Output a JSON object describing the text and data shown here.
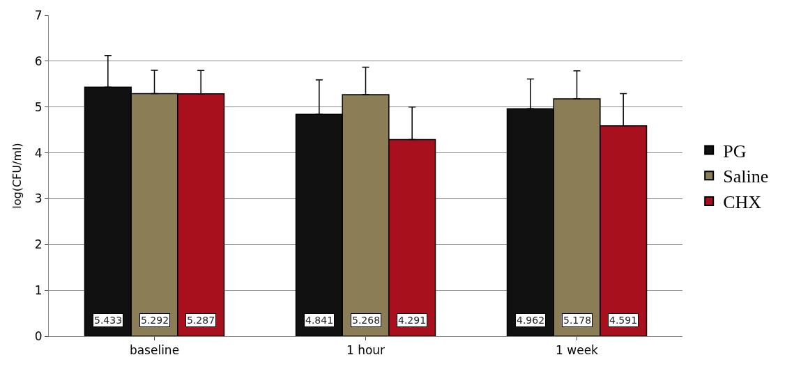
{
  "chart_data": {
    "type": "bar",
    "ylabel": "log(CFU/ml)",
    "categories": [
      "baseline",
      "1 hour",
      "1 week"
    ],
    "ylim": [
      0,
      7
    ],
    "yticks": [
      0,
      1,
      2,
      3,
      4,
      5,
      6,
      7
    ],
    "grid": "y",
    "legend": "right",
    "series": [
      {
        "name": "PG",
        "color": "#111111",
        "values": [
          5.433,
          4.841,
          4.962
        ],
        "errors": [
          0.69,
          0.75,
          0.65
        ],
        "value_labels": [
          "5.433",
          "4.841",
          "4.962"
        ]
      },
      {
        "name": "Saline",
        "color": "#8b7d56",
        "values": [
          5.292,
          5.268,
          5.178
        ],
        "errors": [
          0.51,
          0.6,
          0.61
        ],
        "value_labels": [
          "5.292",
          "5.268",
          "5.178"
        ]
      },
      {
        "name": "CHX",
        "color": "#a8101e",
        "values": [
          5.287,
          4.291,
          4.591
        ],
        "errors": [
          0.51,
          0.71,
          0.7
        ],
        "value_labels": [
          "5.287",
          "4.291",
          "4.591"
        ]
      }
    ]
  }
}
